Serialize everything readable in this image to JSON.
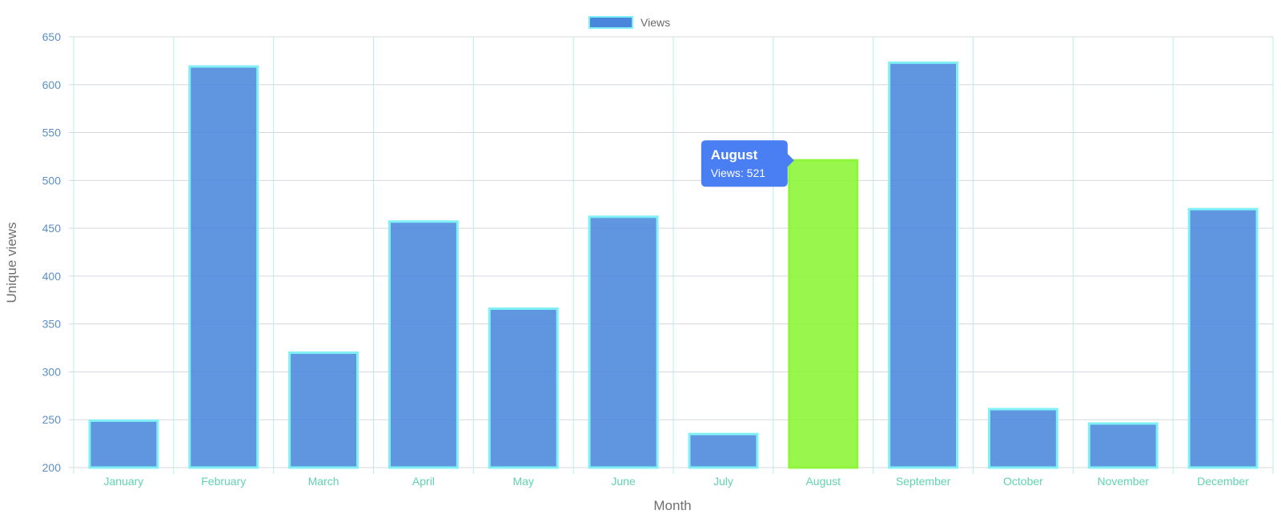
{
  "chart_data": {
    "type": "bar",
    "categories": [
      "January",
      "February",
      "March",
      "April",
      "May",
      "June",
      "July",
      "August",
      "September",
      "October",
      "November",
      "December"
    ],
    "series": [
      {
        "name": "Views",
        "values": [
          249,
          619,
          320,
          457,
          366,
          462,
          235,
          521,
          623,
          261,
          246,
          470
        ]
      }
    ],
    "xlabel": "Month",
    "ylabel": "Unique views",
    "ylim": [
      200,
      650
    ],
    "yticks": [
      200,
      250,
      300,
      350,
      400,
      450,
      500,
      550,
      600,
      650
    ],
    "grid": true,
    "legend_position": "top-center",
    "highlighted_category": "August",
    "tooltip": {
      "title": "August",
      "label": "Views: 521"
    },
    "colors": {
      "bar_fill": "#4a86dc",
      "bar_border": "#7ff0f5",
      "highlight_fill": "#8ef53a",
      "highlight_border": "#8ef53a",
      "tooltip_bg": "#4a7ff4",
      "hgrid": "#d4d8dc",
      "vgrid": "#b3f2e6",
      "ytick": "#5b8fc7",
      "xtick": "#5fd3b0"
    }
  }
}
